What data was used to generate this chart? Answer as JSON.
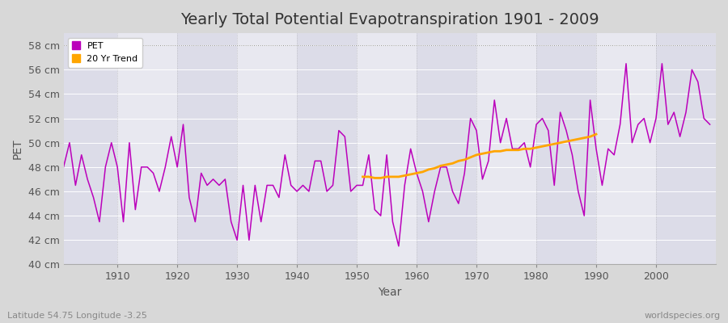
{
  "title": "Yearly Total Potential Evapotranspiration 1901 - 2009",
  "xlabel": "Year",
  "ylabel": "PET",
  "footnote_left": "Latitude 54.75 Longitude -3.25",
  "footnote_right": "worldspecies.org",
  "pet_color": "#BB00BB",
  "trend_color": "#FFA500",
  "fig_bg_color": "#D8D8D8",
  "plot_bg_color": "#E0E0E8",
  "ylim": [
    40,
    59
  ],
  "ytick_top": 58,
  "yticks": [
    40,
    42,
    44,
    46,
    48,
    50,
    52,
    54,
    56,
    58
  ],
  "xticks": [
    1910,
    1920,
    1930,
    1940,
    1950,
    1960,
    1970,
    1980,
    1990,
    2000
  ],
  "xlim": [
    1901,
    2010
  ],
  "years": [
    1901,
    1902,
    1903,
    1904,
    1905,
    1906,
    1907,
    1908,
    1909,
    1910,
    1911,
    1912,
    1913,
    1914,
    1915,
    1916,
    1917,
    1918,
    1919,
    1920,
    1921,
    1922,
    1923,
    1924,
    1925,
    1926,
    1927,
    1928,
    1929,
    1930,
    1931,
    1932,
    1933,
    1934,
    1935,
    1936,
    1937,
    1938,
    1939,
    1940,
    1941,
    1942,
    1943,
    1944,
    1945,
    1946,
    1947,
    1948,
    1949,
    1950,
    1951,
    1952,
    1953,
    1954,
    1955,
    1956,
    1957,
    1958,
    1959,
    1960,
    1961,
    1962,
    1963,
    1964,
    1965,
    1966,
    1967,
    1968,
    1969,
    1970,
    1971,
    1972,
    1973,
    1974,
    1975,
    1976,
    1977,
    1978,
    1979,
    1980,
    1981,
    1982,
    1983,
    1984,
    1985,
    1986,
    1987,
    1988,
    1989,
    1990,
    1991,
    1992,
    1993,
    1994,
    1995,
    1996,
    1997,
    1998,
    1999,
    2000,
    2001,
    2002,
    2003,
    2004,
    2005,
    2006,
    2007,
    2008,
    2009
  ],
  "pet_values": [
    48.0,
    50.0,
    46.5,
    49.0,
    47.0,
    45.5,
    43.5,
    48.0,
    50.0,
    48.0,
    43.5,
    50.0,
    44.5,
    48.0,
    48.0,
    47.5,
    46.0,
    48.0,
    50.5,
    48.0,
    51.5,
    45.5,
    43.5,
    47.5,
    46.5,
    47.0,
    46.5,
    47.0,
    43.5,
    42.0,
    46.5,
    42.0,
    46.5,
    43.5,
    46.5,
    46.5,
    45.5,
    49.0,
    46.5,
    46.0,
    46.5,
    46.0,
    48.5,
    48.5,
    46.0,
    46.5,
    51.0,
    50.5,
    46.0,
    46.5,
    46.5,
    49.0,
    44.5,
    44.0,
    49.0,
    43.5,
    41.5,
    46.5,
    49.5,
    47.5,
    46.0,
    43.5,
    46.0,
    48.0,
    48.0,
    46.0,
    45.0,
    47.5,
    52.0,
    51.0,
    47.0,
    48.5,
    53.5,
    50.0,
    52.0,
    49.5,
    49.5,
    50.0,
    48.0,
    51.5,
    52.0,
    51.0,
    46.5,
    52.5,
    51.0,
    49.0,
    46.0,
    44.0,
    53.5,
    49.5,
    46.5,
    49.5,
    49.0,
    51.5,
    56.5,
    50.0,
    51.5,
    52.0,
    50.0,
    52.0,
    56.5,
    51.5,
    52.5,
    50.5,
    52.5,
    56.0,
    55.0,
    52.0,
    51.5
  ],
  "trend_start_year": 1951,
  "trend_end_year": 1990,
  "trend_values_by_year": {
    "1951": 47.2,
    "1952": 47.2,
    "1953": 47.1,
    "1954": 47.1,
    "1955": 47.2,
    "1956": 47.2,
    "1957": 47.2,
    "1958": 47.3,
    "1959": 47.4,
    "1960": 47.5,
    "1961": 47.6,
    "1962": 47.8,
    "1963": 47.9,
    "1964": 48.1,
    "1965": 48.2,
    "1966": 48.3,
    "1967": 48.5,
    "1968": 48.6,
    "1969": 48.8,
    "1970": 49.0,
    "1971": 49.1,
    "1972": 49.2,
    "1973": 49.3,
    "1974": 49.3,
    "1975": 49.4,
    "1976": 49.4,
    "1977": 49.4,
    "1978": 49.5,
    "1979": 49.5,
    "1980": 49.6,
    "1981": 49.7,
    "1982": 49.8,
    "1983": 49.9,
    "1984": 50.0,
    "1985": 50.1,
    "1986": 50.2,
    "1987": 50.3,
    "1988": 50.4,
    "1989": 50.5,
    "1990": 50.7
  },
  "legend_loc": "upper left",
  "title_fontsize": 14,
  "label_fontsize": 10,
  "tick_fontsize": 9,
  "annot_fontsize": 8
}
